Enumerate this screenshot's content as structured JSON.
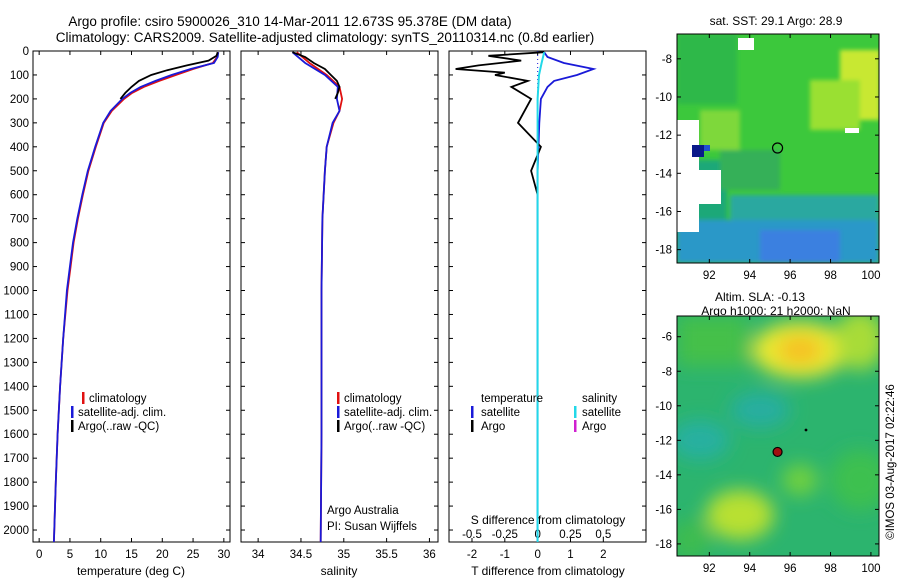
{
  "header": {
    "title_line1": "Argo profile: csiro 5900026_310 14-Mar-2011 12.673S 95.378E (DM data)",
    "title_line2": "Climatology: CARS2009. Satellite-adjusted climatology: synTS_20110314.nc (0.8d earlier)"
  },
  "colors": {
    "climatology": "#e01010",
    "satellite": "#1a1ad8",
    "argo": "#000000",
    "salinity_satellite": "#22d8e8",
    "salinity_argo": "#d020d0"
  },
  "chart_data": [
    {
      "type": "line",
      "name": "temperature-profile",
      "xlabel": "temperature (deg C)",
      "ylabel": "",
      "xlim": [
        -1,
        31
      ],
      "ylim": [
        0,
        2050
      ],
      "y_inverted": true,
      "xticks": [
        0,
        5,
        10,
        15,
        20,
        25,
        30
      ],
      "yticks": [
        0,
        100,
        200,
        300,
        400,
        500,
        600,
        700,
        800,
        900,
        1000,
        1100,
        1200,
        1300,
        1400,
        1500,
        1600,
        1700,
        1800,
        1900,
        2000
      ],
      "legend": [
        "climatology",
        "satellite-adj. clim.",
        "Argo(..raw -QC)"
      ],
      "series": [
        {
          "name": "climatology",
          "depth": [
            5,
            25,
            50,
            75,
            100,
            125,
            150,
            175,
            200,
            250,
            300,
            400,
            500,
            600,
            700,
            800,
            900,
            1000,
            1200,
            1400,
            1600,
            1800,
            2050
          ],
          "values": [
            29.0,
            28.9,
            28.2,
            25.0,
            22.2,
            19.5,
            17.0,
            15.1,
            13.8,
            11.8,
            10.5,
            9.2,
            8.0,
            7.1,
            6.3,
            5.6,
            5.1,
            4.6,
            3.9,
            3.4,
            3.0,
            2.7,
            2.4
          ]
        },
        {
          "name": "satellite-adj. clim.",
          "depth": [
            5,
            25,
            50,
            75,
            100,
            125,
            150,
            175,
            200,
            250,
            300,
            400,
            500,
            600,
            700,
            800,
            900,
            1000,
            1200,
            1400,
            1600,
            1800,
            2050
          ],
          "values": [
            29.1,
            29.0,
            28.4,
            24.6,
            21.5,
            18.9,
            16.5,
            14.8,
            13.5,
            11.6,
            10.4,
            9.1,
            7.9,
            7.0,
            6.2,
            5.5,
            5.0,
            4.5,
            3.9,
            3.4,
            3.0,
            2.7,
            2.4
          ]
        },
        {
          "name": "Argo(..raw -QC)",
          "depth": [
            5,
            20,
            40,
            60,
            80,
            100,
            125,
            150,
            175,
            200
          ],
          "values": [
            29.0,
            28.8,
            27.5,
            24.0,
            20.8,
            18.2,
            16.2,
            15.0,
            14.0,
            13.2
          ]
        }
      ],
      "legend_lines": [
        "climatology",
        "satellite-adj. clim.",
        "Argo(..raw -QC)"
      ]
    },
    {
      "type": "line",
      "name": "salinity-profile",
      "xlabel": "salinity",
      "xlim": [
        33.8,
        36.1
      ],
      "ylim": [
        0,
        2050
      ],
      "y_inverted": true,
      "xticks": [
        34,
        34.5,
        35,
        35.5,
        36
      ],
      "xticklabels": [
        "34",
        "34.5",
        "35",
        "35.5",
        "36"
      ],
      "legend": [
        "climatology",
        "satellite-adj. clim.",
        "Argo(..raw -QC)"
      ],
      "annotations": [
        "Argo Australia",
        "PI: Susan Wijffels"
      ],
      "series": [
        {
          "name": "climatology",
          "depth": [
            5,
            50,
            100,
            150,
            200,
            250,
            300,
            400,
            500,
            700,
            1000,
            1300,
            1600,
            2050
          ],
          "values": [
            34.45,
            34.6,
            34.8,
            34.95,
            34.98,
            34.95,
            34.88,
            34.8,
            34.78,
            34.75,
            34.74,
            34.74,
            34.74,
            34.73
          ]
        },
        {
          "name": "satellite-adj. clim.",
          "depth": [
            5,
            50,
            100,
            150,
            200,
            250,
            300,
            400,
            500,
            700,
            1000,
            1300,
            1600,
            2050
          ],
          "values": [
            34.4,
            34.55,
            34.78,
            34.93,
            34.92,
            34.95,
            34.87,
            34.8,
            34.78,
            34.75,
            34.74,
            34.74,
            34.74,
            34.73
          ]
        },
        {
          "name": "Argo(..raw -QC)",
          "depth": [
            5,
            25,
            50,
            75,
            100,
            125,
            150,
            175,
            200
          ],
          "values": [
            34.4,
            34.55,
            34.65,
            34.78,
            34.85,
            34.92,
            34.95,
            34.93,
            34.9
          ]
        }
      ]
    },
    {
      "type": "line",
      "name": "difference-profile",
      "xlabel": "T difference from climatology",
      "xlabel_top": "S difference from climatology",
      "xlim": [
        -2.7,
        3.3
      ],
      "ylim": [
        0,
        2050
      ],
      "y_inverted": true,
      "xticks_T": [
        -2,
        -1,
        0,
        1,
        2
      ],
      "xticks_S": [
        -0.5,
        -0.25,
        0,
        0.25,
        0.5
      ],
      "legend_temperature": {
        "title": "temperature",
        "items": [
          "satellite",
          "Argo"
        ]
      },
      "legend_salinity": {
        "title": "salinity",
        "items": [
          "satellite",
          "Argo"
        ]
      },
      "series": [
        {
          "name": "T satellite",
          "depth": [
            5,
            25,
            50,
            75,
            100,
            125,
            150,
            200,
            300,
            500,
            800,
            1200,
            1600,
            2050
          ],
          "values": [
            0.2,
            0.3,
            0.8,
            1.7,
            1.2,
            0.5,
            0.3,
            0.1,
            0.05,
            0.0,
            0.0,
            0.0,
            0.0,
            0.0
          ]
        },
        {
          "name": "T Argo",
          "depth": [
            5,
            20,
            40,
            60,
            75,
            90,
            100,
            125,
            150,
            200,
            300,
            400,
            500,
            600
          ],
          "values": [
            0.2,
            -1.5,
            -0.5,
            -1.8,
            -2.5,
            -1.0,
            -1.3,
            -0.3,
            -0.8,
            -0.2,
            -0.6,
            0.1,
            -0.2,
            0.0
          ]
        },
        {
          "name": "S satellite",
          "depth": [
            5,
            50,
            100,
            200,
            400,
            800,
            1200,
            1600,
            2050
          ],
          "values": [
            0.05,
            0.03,
            0.01,
            0.0,
            0.0,
            0.0,
            0.0,
            0.0,
            0.0
          ]
        }
      ]
    },
    {
      "type": "heatmap",
      "name": "sst-map",
      "title": "sat. SST: 29.1  Argo: 28.9",
      "xticks": [
        92,
        94,
        96,
        98,
        100
      ],
      "yticks": [
        -8,
        -10,
        -12,
        -14,
        -16,
        -18
      ],
      "xlim": [
        90.4,
        100.4
      ],
      "ylim": [
        -18.7,
        -6.7
      ],
      "marker": [
        95.378,
        -12.673
      ]
    },
    {
      "type": "heatmap",
      "name": "sla-map",
      "title": "Altim. SLA: -0.13",
      "subtitle": "Argo h1000: 21  h2000: NaN",
      "xticks": [
        92,
        94,
        96,
        98,
        100
      ],
      "yticks": [
        -6,
        -8,
        -10,
        -12,
        -14,
        -16,
        -18
      ],
      "xlim": [
        90.4,
        100.4
      ],
      "ylim": [
        -18.7,
        -4.8
      ],
      "marker": [
        95.378,
        -12.673
      ]
    }
  ],
  "watermark": "©IMOS 03-Aug-2017 02:22:46"
}
